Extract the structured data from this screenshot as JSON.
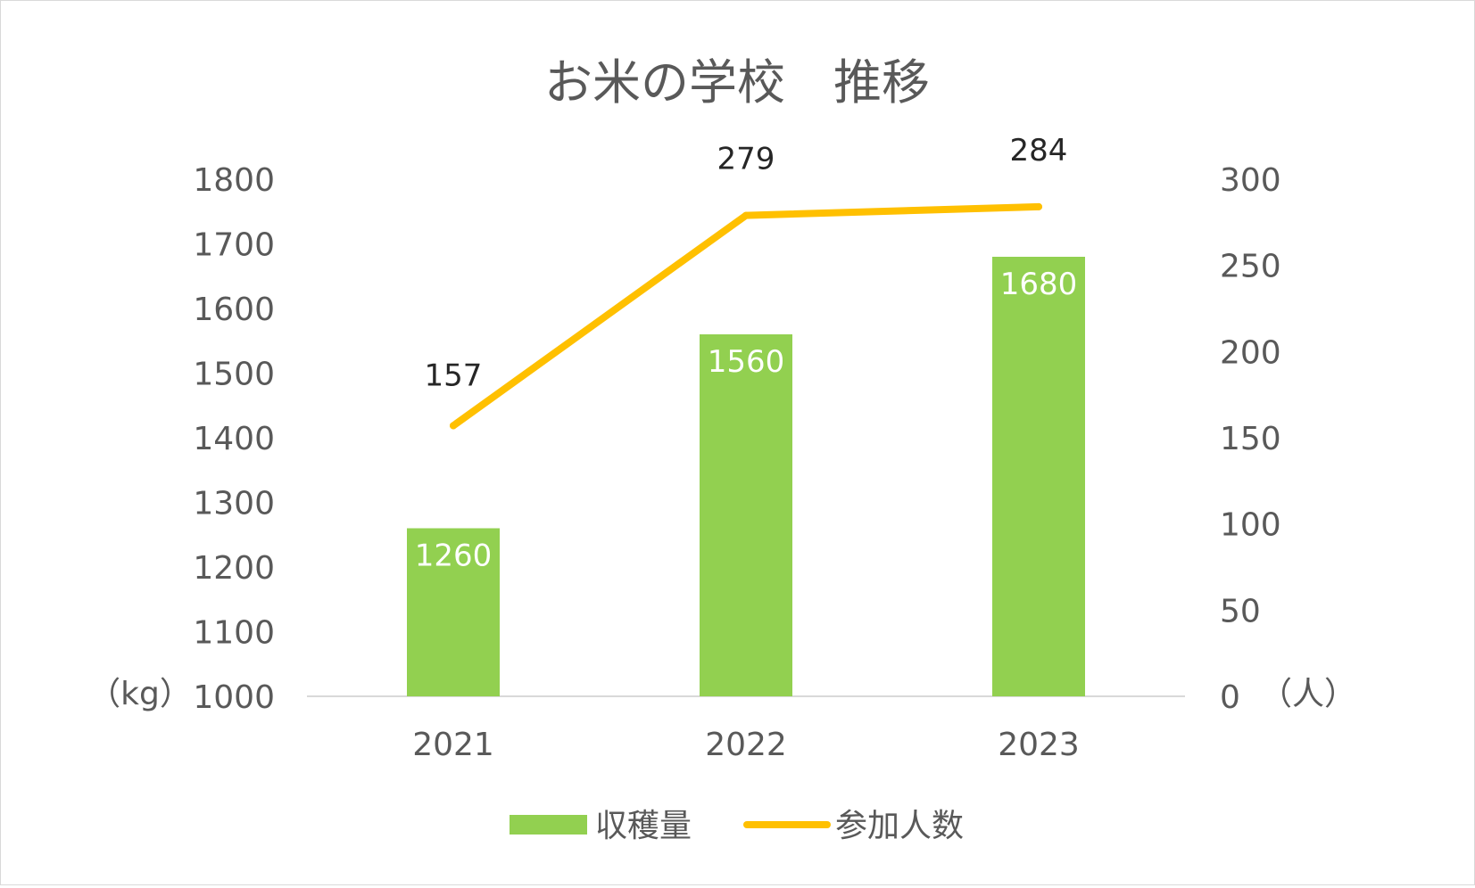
{
  "chart_data": {
    "type": "bar+line",
    "title": "お米の学校　推移",
    "categories": [
      "2021",
      "2022",
      "2023"
    ],
    "series": [
      {
        "name": "収穫量",
        "type": "bar",
        "axis": "left",
        "values": [
          1260,
          1560,
          1680
        ],
        "color": "#92d050",
        "label_color": "#ffffff"
      },
      {
        "name": "参加人数",
        "type": "line",
        "axis": "right",
        "values": [
          157,
          279,
          284
        ],
        "color": "#ffc000",
        "label_color": "#262626"
      }
    ],
    "y_left": {
      "unit_label": "（kg）",
      "ylim": [
        1000,
        1800
      ],
      "ticks": [
        "1000",
        "1100",
        "1200",
        "1300",
        "1400",
        "1500",
        "1600",
        "1700",
        "1800"
      ]
    },
    "y_right": {
      "unit_label": "（人）",
      "ylim": [
        0,
        300
      ],
      "ticks": [
        "0",
        "50",
        "100",
        "150",
        "200",
        "250",
        "300"
      ]
    },
    "grid": false,
    "legend": "bottom",
    "colors": {
      "text": "#595959",
      "axis_line": "#d9d9d9",
      "border": "#d9d9d9"
    }
  }
}
